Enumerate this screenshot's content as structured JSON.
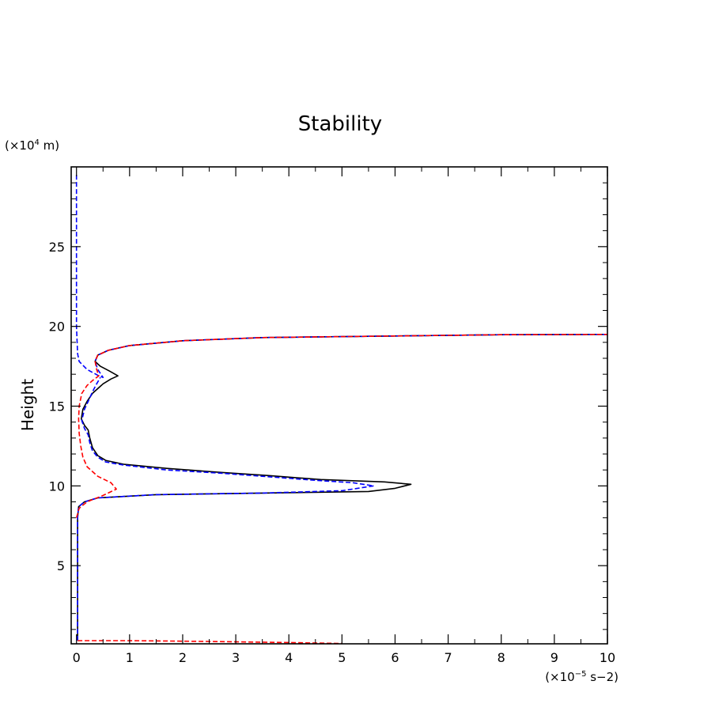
{
  "chart_data": {
    "type": "line",
    "title": "Stability",
    "ylabel": "Height",
    "yunit_prefix": "(×10",
    "yunit_exp": "4",
    "yunit_suffix": " m)",
    "xunit_prefix": "(×10",
    "xunit_exp": "−5",
    "xunit_suffix": " s−2)",
    "xlim": [
      -0.1,
      10
    ],
    "ylim": [
      0.1,
      30
    ],
    "xticks": [
      0,
      1,
      2,
      3,
      4,
      5,
      6,
      7,
      8,
      9,
      10
    ],
    "yticks": [
      5,
      10,
      15,
      20,
      25
    ],
    "grid": false,
    "series": [
      {
        "color": "#000000",
        "dash": "solid",
        "points": [
          [
            0.02,
            0.3
          ],
          [
            0.02,
            8.0
          ],
          [
            0.04,
            8.7
          ],
          [
            0.15,
            9.0
          ],
          [
            0.4,
            9.25
          ],
          [
            1.5,
            9.45
          ],
          [
            3.5,
            9.55
          ],
          [
            5.5,
            9.65
          ],
          [
            6.0,
            9.85
          ],
          [
            6.3,
            10.1
          ],
          [
            5.8,
            10.25
          ],
          [
            4.6,
            10.4
          ],
          [
            3.6,
            10.65
          ],
          [
            2.7,
            10.85
          ],
          [
            1.7,
            11.1
          ],
          [
            0.9,
            11.35
          ],
          [
            0.55,
            11.6
          ],
          [
            0.4,
            11.9
          ],
          [
            0.3,
            12.4
          ],
          [
            0.25,
            13.0
          ],
          [
            0.22,
            13.5
          ],
          [
            0.15,
            13.8
          ],
          [
            0.09,
            14.2
          ],
          [
            0.12,
            14.8
          ],
          [
            0.2,
            15.3
          ],
          [
            0.3,
            15.8
          ],
          [
            0.5,
            16.4
          ],
          [
            0.65,
            16.7
          ],
          [
            0.78,
            16.9
          ],
          [
            0.62,
            17.2
          ],
          [
            0.45,
            17.5
          ],
          [
            0.35,
            17.8
          ],
          [
            0.4,
            18.2
          ],
          [
            0.6,
            18.5
          ],
          [
            1.0,
            18.8
          ],
          [
            2.0,
            19.1
          ],
          [
            3.5,
            19.3
          ],
          [
            6.0,
            19.4
          ],
          [
            8.0,
            19.48
          ],
          [
            10.0,
            19.5
          ]
        ]
      },
      {
        "color": "#0000ff",
        "dash": "dashed",
        "points": [
          [
            0.0,
            29.5
          ],
          [
            0.0,
            20.0
          ],
          [
            0.02,
            18.3
          ],
          [
            0.05,
            17.8
          ],
          [
            0.2,
            17.3
          ],
          [
            0.42,
            16.9
          ],
          [
            0.5,
            16.8
          ],
          [
            0.4,
            17.3
          ],
          [
            0.35,
            17.8
          ],
          [
            0.4,
            18.2
          ],
          [
            0.6,
            18.5
          ],
          [
            1.0,
            18.8
          ],
          [
            2.0,
            19.1
          ],
          [
            3.5,
            19.3
          ],
          [
            6.0,
            19.4
          ],
          [
            8.0,
            19.48
          ],
          [
            10.0,
            19.5
          ]
        ]
      },
      {
        "color": "#0000ff",
        "dash": "dashed",
        "points": [
          [
            0.02,
            0.3
          ],
          [
            0.02,
            8.0
          ],
          [
            0.04,
            8.7
          ],
          [
            0.15,
            9.0
          ],
          [
            0.4,
            9.25
          ],
          [
            1.5,
            9.45
          ],
          [
            3.5,
            9.55
          ],
          [
            5.0,
            9.7
          ],
          [
            5.6,
            10.0
          ],
          [
            5.2,
            10.2
          ],
          [
            4.5,
            10.35
          ],
          [
            3.5,
            10.6
          ],
          [
            2.7,
            10.8
          ],
          [
            1.7,
            11.0
          ],
          [
            0.9,
            11.3
          ],
          [
            0.55,
            11.5
          ],
          [
            0.4,
            11.8
          ],
          [
            0.3,
            12.2
          ],
          [
            0.25,
            12.7
          ],
          [
            0.22,
            13.2
          ],
          [
            0.15,
            13.6
          ],
          [
            0.1,
            14.1
          ],
          [
            0.15,
            14.8
          ],
          [
            0.22,
            15.3
          ],
          [
            0.3,
            15.9
          ],
          [
            0.38,
            16.4
          ],
          [
            0.45,
            16.8
          ]
        ]
      },
      {
        "color": "#ff0000",
        "dash": "dashed",
        "points": [
          [
            0.0,
            8.0
          ],
          [
            0.05,
            8.6
          ],
          [
            0.2,
            9.0
          ],
          [
            0.5,
            9.4
          ],
          [
            0.75,
            9.8
          ],
          [
            0.65,
            10.2
          ],
          [
            0.4,
            10.6
          ],
          [
            0.2,
            11.2
          ],
          [
            0.12,
            11.8
          ],
          [
            0.08,
            12.5
          ],
          [
            0.05,
            13.3
          ],
          [
            0.04,
            14.2
          ],
          [
            0.05,
            15.0
          ],
          [
            0.1,
            15.8
          ],
          [
            0.2,
            16.3
          ],
          [
            0.3,
            16.6
          ],
          [
            0.42,
            16.9
          ],
          [
            0.38,
            17.3
          ],
          [
            0.35,
            17.8
          ],
          [
            0.4,
            18.2
          ],
          [
            0.6,
            18.5
          ],
          [
            1.0,
            18.8
          ],
          [
            2.0,
            19.1
          ],
          [
            3.5,
            19.3
          ],
          [
            6.0,
            19.4
          ],
          [
            8.0,
            19.48
          ],
          [
            10.0,
            19.5
          ]
        ]
      },
      {
        "color": "#ff0000",
        "dash": "dashed",
        "points": [
          [
            0.02,
            0.3
          ],
          [
            1.0,
            0.3
          ],
          [
            2.5,
            0.25
          ],
          [
            4.0,
            0.18
          ],
          [
            5.0,
            0.12
          ]
        ]
      }
    ]
  }
}
